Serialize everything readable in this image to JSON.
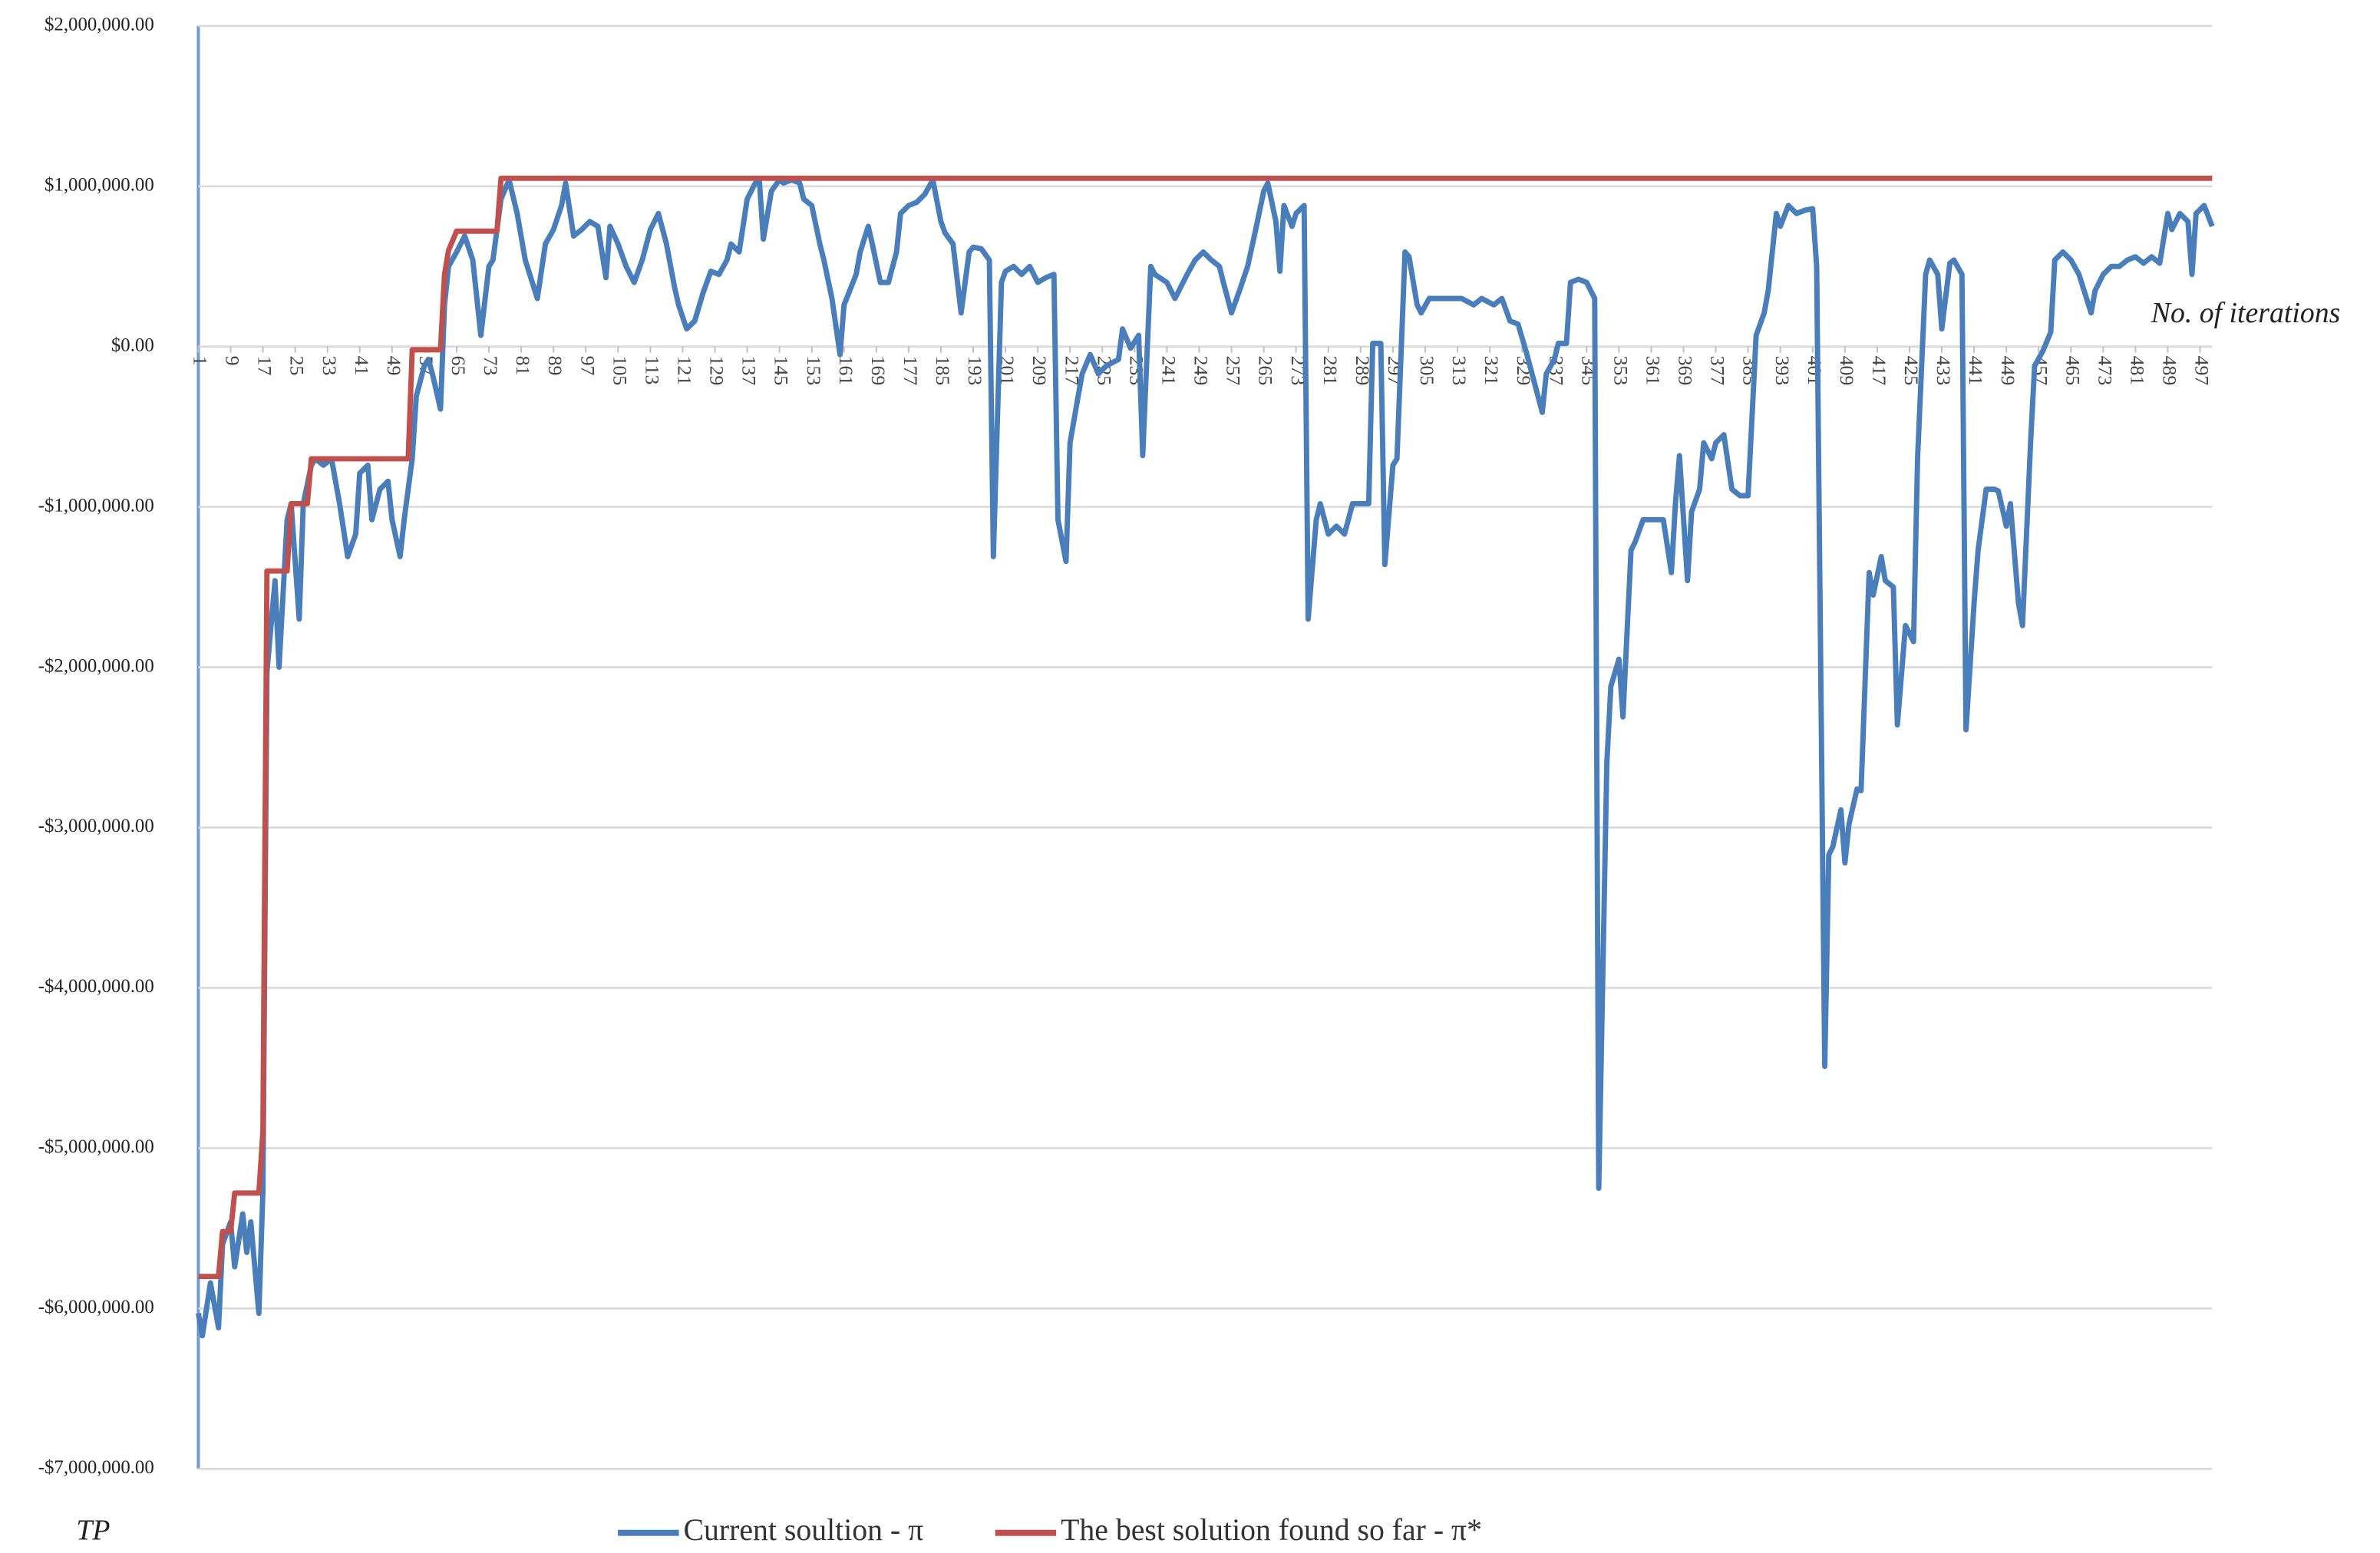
{
  "chart_data": {
    "type": "line",
    "x_label": "No. of iterations",
    "y_label": "TP",
    "xlim": [
      1,
      500
    ],
    "xticks": [
      1,
      9,
      17,
      25,
      33,
      41,
      49,
      57,
      65,
      73,
      81,
      89,
      97,
      105,
      113,
      121,
      129,
      137,
      145,
      153,
      161,
      169,
      177,
      185,
      193,
      201,
      209,
      217,
      225,
      233,
      241,
      249,
      257,
      265,
      273,
      281,
      289,
      297,
      305,
      313,
      321,
      329,
      337,
      345,
      353,
      361,
      369,
      377,
      385,
      393,
      401,
      409,
      417,
      425,
      433,
      441,
      449,
      457,
      465,
      473,
      481,
      489,
      497
    ],
    "ylim": [
      -7000000,
      2000000
    ],
    "yticks": [
      {
        "value": 2000000,
        "label": "$2,000,000.00"
      },
      {
        "value": 1000000,
        "label": "$1,000,000.00"
      },
      {
        "value": 0,
        "label": "$0.00"
      },
      {
        "value": -1000000,
        "label": "-$1,000,000.00"
      },
      {
        "value": -2000000,
        "label": "-$2,000,000.00"
      },
      {
        "value": -3000000,
        "label": "-$3,000,000.00"
      },
      {
        "value": -4000000,
        "label": "-$4,000,000.00"
      },
      {
        "value": -5000000,
        "label": "-$5,000,000.00"
      },
      {
        "value": -6000000,
        "label": "-$6,000,000.00"
      },
      {
        "value": -7000000,
        "label": "-$7,000,000.00"
      }
    ],
    "grid": true,
    "legend": "bottom",
    "series": [
      {
        "name": "Current soultion - π",
        "color": "#4a7ebb",
        "x": [
          1,
          2,
          4,
          6,
          7,
          9,
          10,
          12,
          13,
          14,
          16,
          17,
          18,
          20,
          21,
          23,
          24,
          26,
          27,
          29,
          30,
          32,
          34,
          36,
          38,
          40,
          41,
          43,
          44,
          46,
          48,
          49,
          51,
          52,
          54,
          55,
          57,
          58,
          59,
          61,
          62,
          63,
          65,
          67,
          69,
          71,
          73,
          74,
          76,
          78,
          80,
          82,
          85,
          87,
          89,
          91,
          92,
          94,
          96,
          98,
          100,
          102,
          103,
          105,
          107,
          109,
          111,
          113,
          115,
          117,
          119,
          120,
          122,
          124,
          126,
          128,
          130,
          132,
          133,
          135,
          137,
          139,
          140,
          141,
          143,
          145,
          146,
          148,
          150,
          151,
          153,
          155,
          156,
          158,
          160,
          161,
          164,
          165,
          167,
          168,
          170,
          172,
          174,
          175,
          177,
          179,
          181,
          183,
          185,
          186,
          188,
          190,
          192,
          193,
          195,
          197,
          198,
          200,
          201,
          203,
          205,
          207,
          209,
          211,
          213,
          214,
          216,
          217,
          219,
          220,
          222,
          224,
          226,
          229,
          230,
          232,
          234,
          235,
          237,
          238,
          241,
          243,
          244,
          246,
          248,
          250,
          252,
          254,
          255,
          257,
          259,
          261,
          263,
          265,
          266,
          268,
          269,
          270,
          272,
          273,
          275,
          276,
          278,
          279,
          281,
          283,
          285,
          287,
          289,
          291,
          292,
          294,
          295,
          297,
          298,
          300,
          301,
          303,
          304,
          306,
          308,
          311,
          314,
          317,
          319,
          322,
          324,
          326,
          328,
          330,
          332,
          334,
          335,
          337,
          338,
          340,
          341,
          343,
          345,
          347,
          348,
          350,
          351,
          353,
          354,
          356,
          357,
          359,
          360,
          362,
          364,
          366,
          367,
          368,
          370,
          371,
          373,
          374,
          376,
          377,
          379,
          381,
          383,
          385,
          387,
          389,
          390,
          392,
          393,
          395,
          397,
          399,
          401,
          402,
          404,
          405,
          406,
          408,
          409,
          410,
          412,
          413,
          415,
          416,
          418,
          419,
          421,
          422,
          424,
          426,
          427,
          429,
          430,
          432,
          433,
          435,
          436,
          438,
          439,
          441,
          442,
          444,
          446,
          447,
          449,
          450,
          452,
          453,
          455,
          456,
          458,
          460,
          461,
          463,
          465,
          467,
          470,
          471,
          473,
          475,
          477,
          479,
          481,
          483,
          485,
          487,
          489,
          490,
          492,
          494,
          495,
          496,
          498,
          500
        ],
        "values": [
          -6030000,
          -6170000,
          -5840000,
          -6120000,
          -5600000,
          -5460000,
          -5740000,
          -5410000,
          -5650000,
          -5460000,
          -6030000,
          -5270000,
          -2030000,
          -1460000,
          -2000000,
          -1080000,
          -980000,
          -1700000,
          -980000,
          -740000,
          -700000,
          -740000,
          -700000,
          -980000,
          -1310000,
          -1170000,
          -790000,
          -740000,
          -1080000,
          -890000,
          -840000,
          -1080000,
          -1310000,
          -1080000,
          -700000,
          -310000,
          -120000,
          -80000,
          -170000,
          -390000,
          260000,
          500000,
          590000,
          690000,
          540000,
          70000,
          500000,
          540000,
          920000,
          1040000,
          830000,
          540000,
          300000,
          640000,
          730000,
          880000,
          1020000,
          690000,
          730000,
          780000,
          750000,
          430000,
          750000,
          640000,
          500000,
          400000,
          540000,
          730000,
          830000,
          640000,
          370000,
          260000,
          110000,
          160000,
          330000,
          470000,
          450000,
          540000,
          640000,
          590000,
          920000,
          1020000,
          1040000,
          670000,
          970000,
          1040000,
          1020000,
          1040000,
          1020000,
          920000,
          880000,
          640000,
          540000,
          300000,
          -50000,
          260000,
          450000,
          590000,
          750000,
          640000,
          400000,
          400000,
          590000,
          830000,
          880000,
          900000,
          950000,
          1040000,
          780000,
          710000,
          640000,
          210000,
          590000,
          620000,
          610000,
          540000,
          -1310000,
          400000,
          470000,
          500000,
          450000,
          500000,
          400000,
          430000,
          450000,
          -1080000,
          -1340000,
          -600000,
          -310000,
          -170000,
          -50000,
          -170000,
          -120000,
          -80000,
          110000,
          -10000,
          70000,
          -680000,
          500000,
          450000,
          400000,
          300000,
          350000,
          450000,
          540000,
          590000,
          540000,
          500000,
          400000,
          210000,
          350000,
          500000,
          730000,
          970000,
          1020000,
          780000,
          470000,
          880000,
          750000,
          830000,
          880000,
          -1700000,
          -1080000,
          -980000,
          -1170000,
          -1120000,
          -1170000,
          -980000,
          -980000,
          -980000,
          20000,
          20000,
          -1360000,
          -740000,
          -700000,
          590000,
          560000,
          260000,
          210000,
          300000,
          300000,
          300000,
          300000,
          260000,
          300000,
          260000,
          300000,
          160000,
          140000,
          -30000,
          -220000,
          -410000,
          -170000,
          -80000,
          20000,
          20000,
          400000,
          420000,
          400000,
          300000,
          -5250000,
          -2600000,
          -2120000,
          -1950000,
          -2310000,
          -1270000,
          -1220000,
          -1080000,
          -1080000,
          -1080000,
          -1080000,
          -1410000,
          -980000,
          -680000,
          -1460000,
          -1030000,
          -890000,
          -600000,
          -700000,
          -600000,
          -550000,
          -890000,
          -930000,
          -930000,
          70000,
          210000,
          350000,
          830000,
          750000,
          880000,
          830000,
          850000,
          860000,
          500000,
          -4490000,
          -3170000,
          -3120000,
          -2890000,
          -3220000,
          -2980000,
          -2760000,
          -2770000,
          -1410000,
          -1550000,
          -1310000,
          -1460000,
          -1500000,
          -2360000,
          -1740000,
          -1840000,
          -700000,
          450000,
          540000,
          450000,
          110000,
          520000,
          540000,
          450000,
          -2390000,
          -1600000,
          -1270000,
          -890000,
          -890000,
          -900000,
          -1120000,
          -980000,
          -1600000,
          -1740000,
          -600000,
          -120000,
          -30000,
          90000,
          540000,
          590000,
          540000,
          450000,
          210000,
          350000,
          450000,
          500000,
          500000,
          540000,
          560000,
          520000,
          560000,
          520000,
          830000,
          730000,
          830000,
          780000,
          450000,
          830000,
          880000,
          750000
        ]
      },
      {
        "name": "The best solution found so far - π*",
        "color": "#c0504d",
        "x": [
          1,
          6,
          7,
          9,
          10,
          16,
          17,
          18,
          23,
          24,
          28,
          29,
          53,
          54,
          61,
          62,
          63,
          65,
          75,
          76,
          500
        ],
        "values": [
          -5800000,
          -5800000,
          -5520000,
          -5520000,
          -5280000,
          -5280000,
          -4900000,
          -1400000,
          -1400000,
          -980000,
          -980000,
          -700000,
          -700000,
          -20000,
          -20000,
          450000,
          600000,
          720000,
          720000,
          1050000,
          1050000
        ]
      }
    ]
  }
}
